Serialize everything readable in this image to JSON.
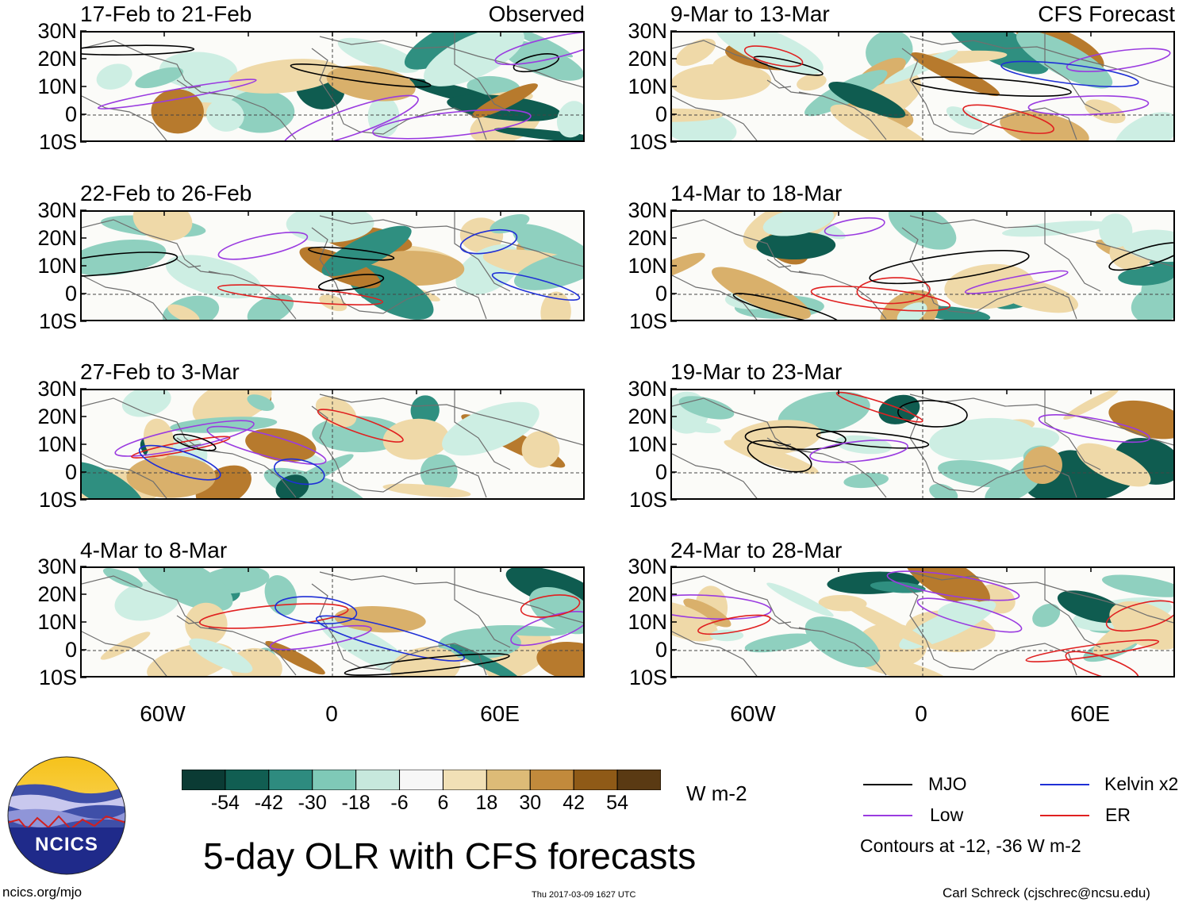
{
  "panels": [
    {
      "title": "17-Feb to 21-Feb",
      "tag": "Observed"
    },
    {
      "title": "9-Mar to 13-Mar",
      "tag": "CFS Forecast"
    },
    {
      "title": "22-Feb to 26-Feb",
      "tag": ""
    },
    {
      "title": "14-Mar to 18-Mar",
      "tag": ""
    },
    {
      "title": "27-Feb to 3-Mar",
      "tag": ""
    },
    {
      "title": "19-Mar to 23-Mar",
      "tag": ""
    },
    {
      "title": "4-Mar to 8-Mar",
      "tag": ""
    },
    {
      "title": "24-Mar to 28-Mar",
      "tag": ""
    }
  ],
  "lat_labels": [
    "30N",
    "20N",
    "10N",
    "0",
    "10S"
  ],
  "lon_labels": [
    "60W",
    "0",
    "60E"
  ],
  "colorbar": {
    "colors": [
      "#0b3b34",
      "#115e52",
      "#2e8b7f",
      "#7fc9b7",
      "#c7e8dd",
      "#f7f7f7",
      "#f1e0b6",
      "#ddbb77",
      "#c28a3c",
      "#8f5a17",
      "#5a3a13"
    ],
    "labels": [
      "-54",
      "-42",
      "-30",
      "-18",
      "-6",
      "6",
      "18",
      "30",
      "42",
      "54"
    ],
    "units": "W m-2"
  },
  "legend": {
    "items": [
      {
        "label": "MJO",
        "color": "#000000"
      },
      {
        "label": "Kelvin x2",
        "color": "#1f2fd6"
      },
      {
        "label": "Low",
        "color": "#9a3be0"
      },
      {
        "label": "ER",
        "color": "#e02020"
      }
    ],
    "note": "Contours at -12, -36 W m-2"
  },
  "title": "5-day OLR with CFS forecasts",
  "footer": {
    "url": "ncics.org/mjo",
    "timestamp": "Thu 2017-03-09 1627 UTC",
    "author": "Carl Schreck (cjschrec@ncsu.edu)"
  },
  "logo": {
    "text": "NCICS"
  }
}
